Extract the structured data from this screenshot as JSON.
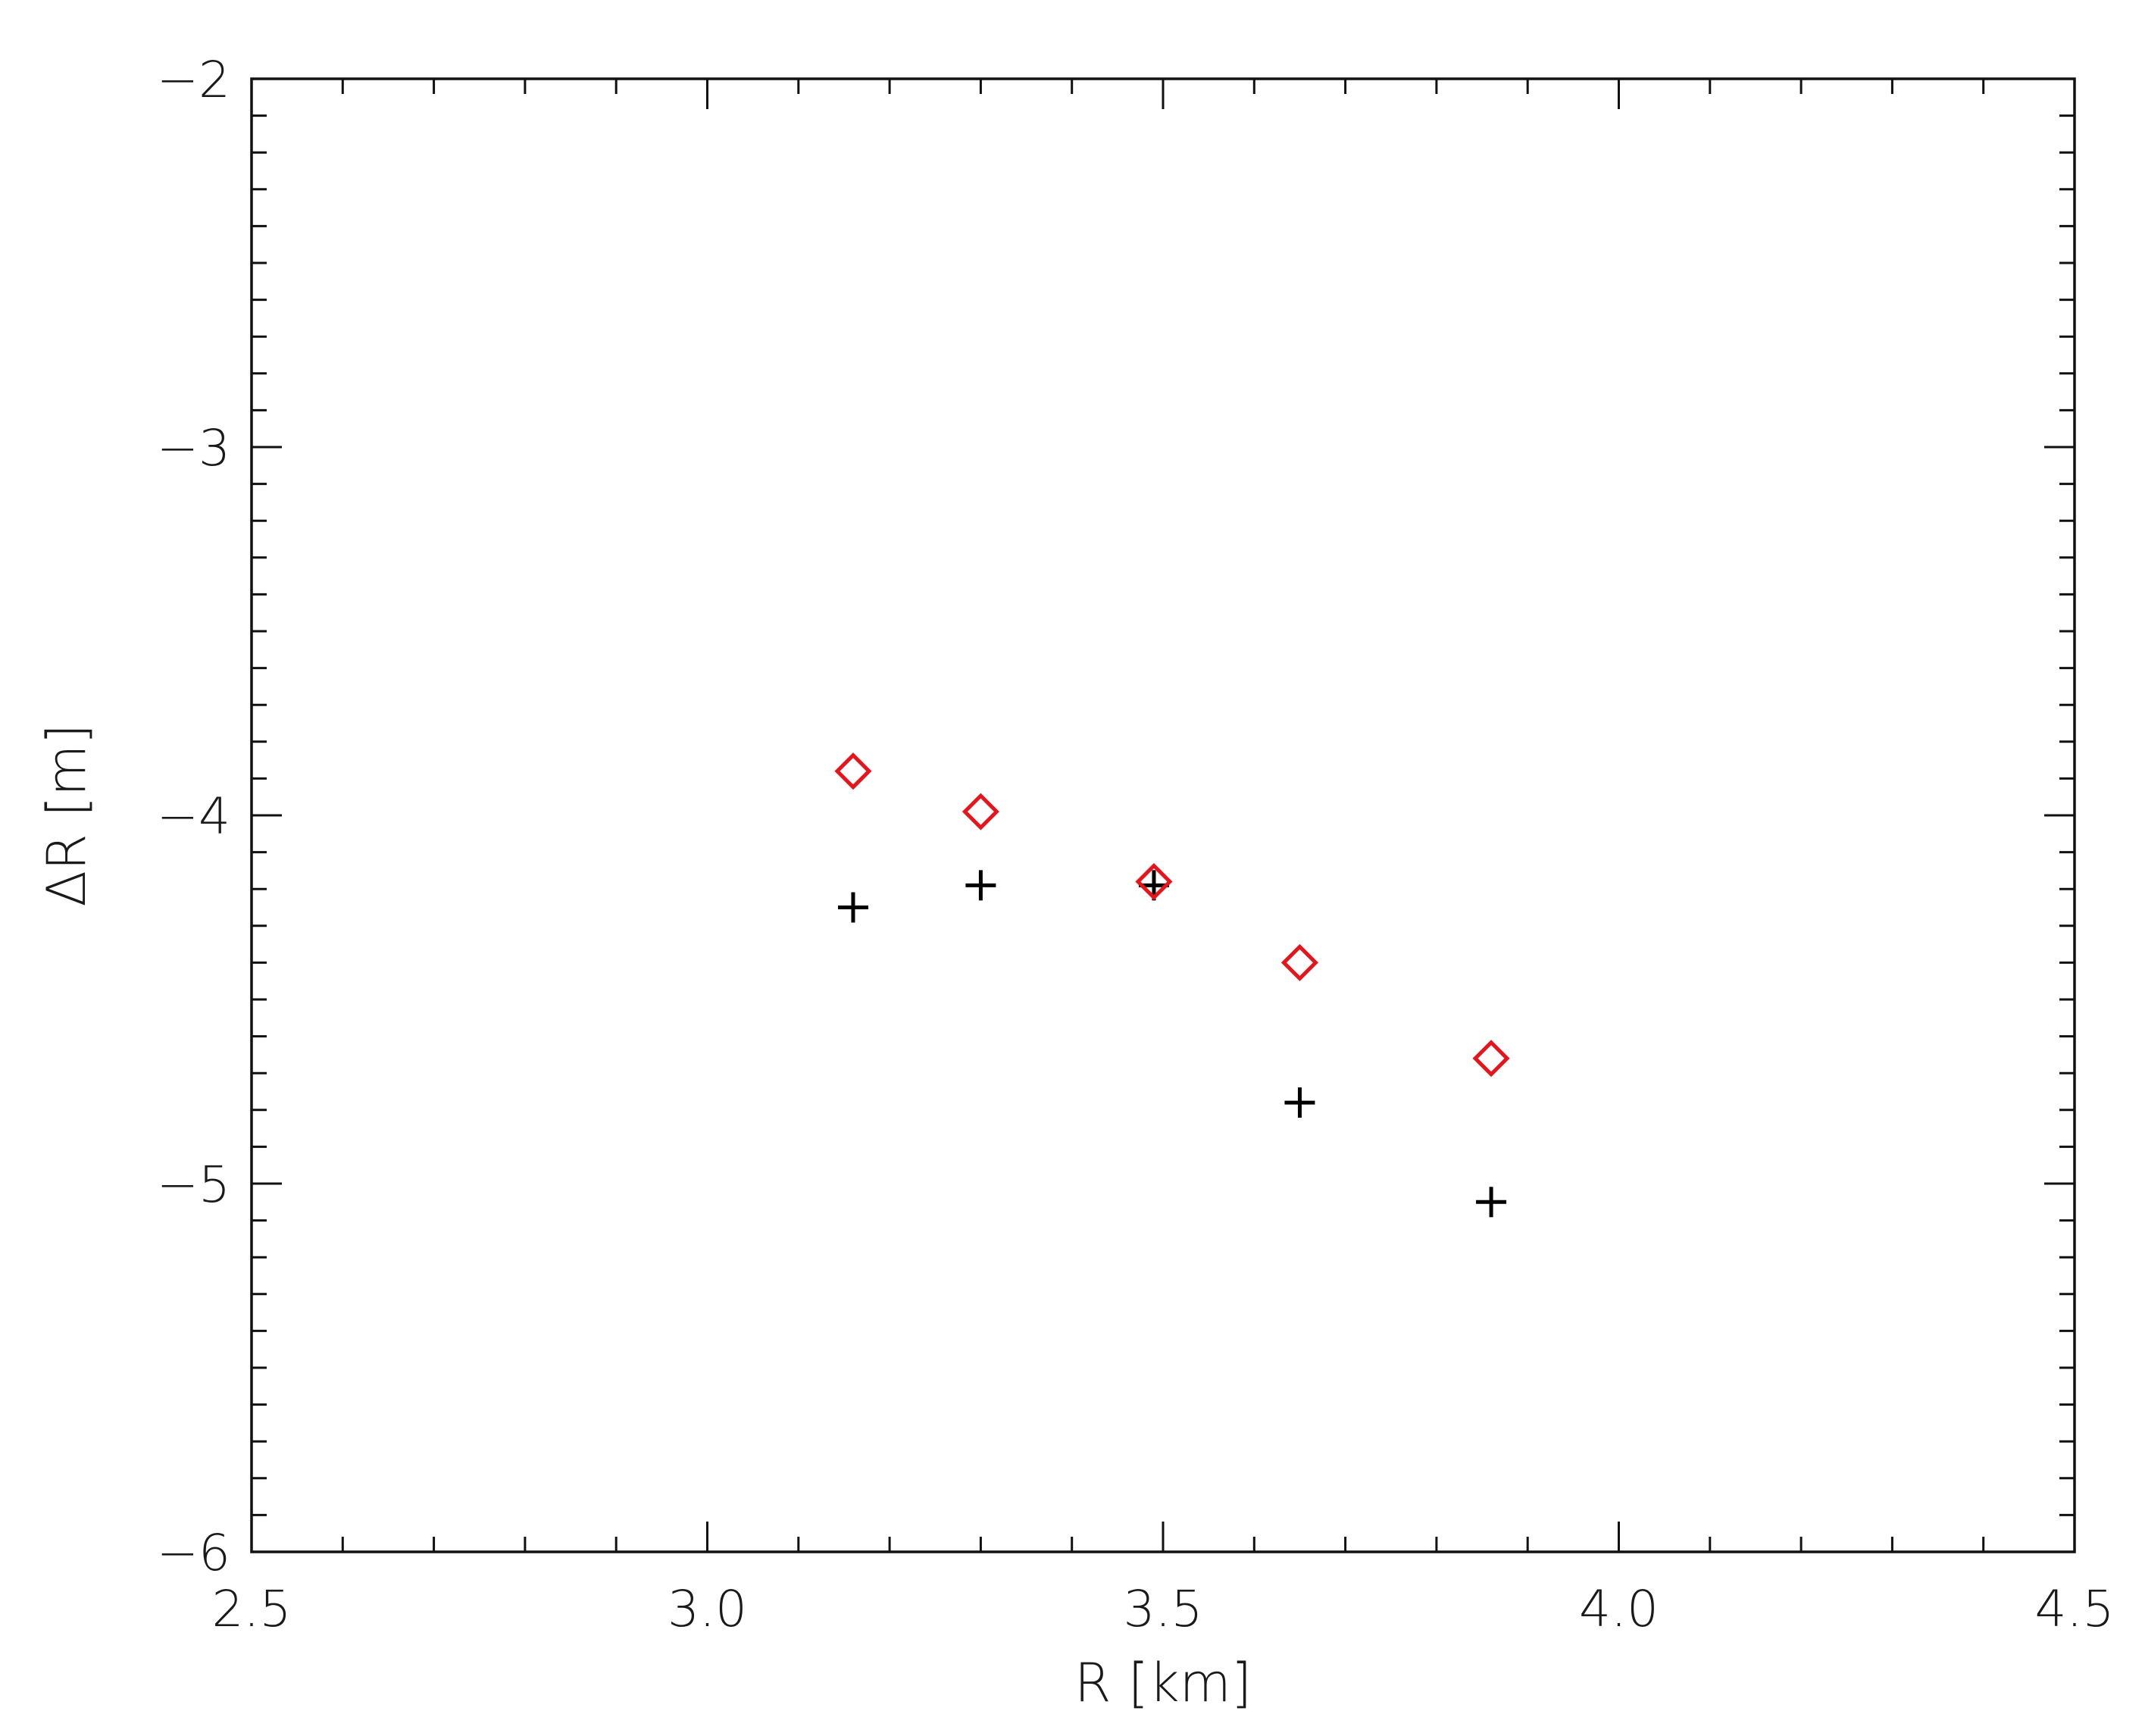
{
  "chart_data": {
    "type": "scatter",
    "xlabel": "R [km]",
    "ylabel": "ΔR [m]",
    "xlim": [
      2.5,
      4.5
    ],
    "ylim": [
      -6,
      -2
    ],
    "x_major_ticks": [
      2.5,
      3.0,
      3.5,
      4.0,
      4.5
    ],
    "x_tick_labels": [
      "2.5",
      "3.0",
      "3.5",
      "4.0",
      "4.5"
    ],
    "x_minor_step": 0.1,
    "y_major_ticks": [
      -6,
      -5,
      -4,
      -3,
      -2
    ],
    "y_tick_labels": [
      "−6",
      "−5",
      "−4",
      "−3",
      "−2"
    ],
    "y_minor_step": 0.1,
    "grid": false,
    "series": [
      {
        "marker": "plus",
        "color": "#000000",
        "x": [
          3.16,
          3.3,
          3.49,
          3.65,
          3.86
        ],
        "y": [
          -4.25,
          -4.19,
          -4.19,
          -4.78,
          -5.05
        ]
      },
      {
        "marker": "diamond",
        "color": "#e8141c",
        "x": [
          3.16,
          3.3,
          3.49,
          3.65,
          3.86
        ],
        "y": [
          -3.88,
          -3.99,
          -4.18,
          -4.4,
          -4.66
        ]
      }
    ]
  }
}
